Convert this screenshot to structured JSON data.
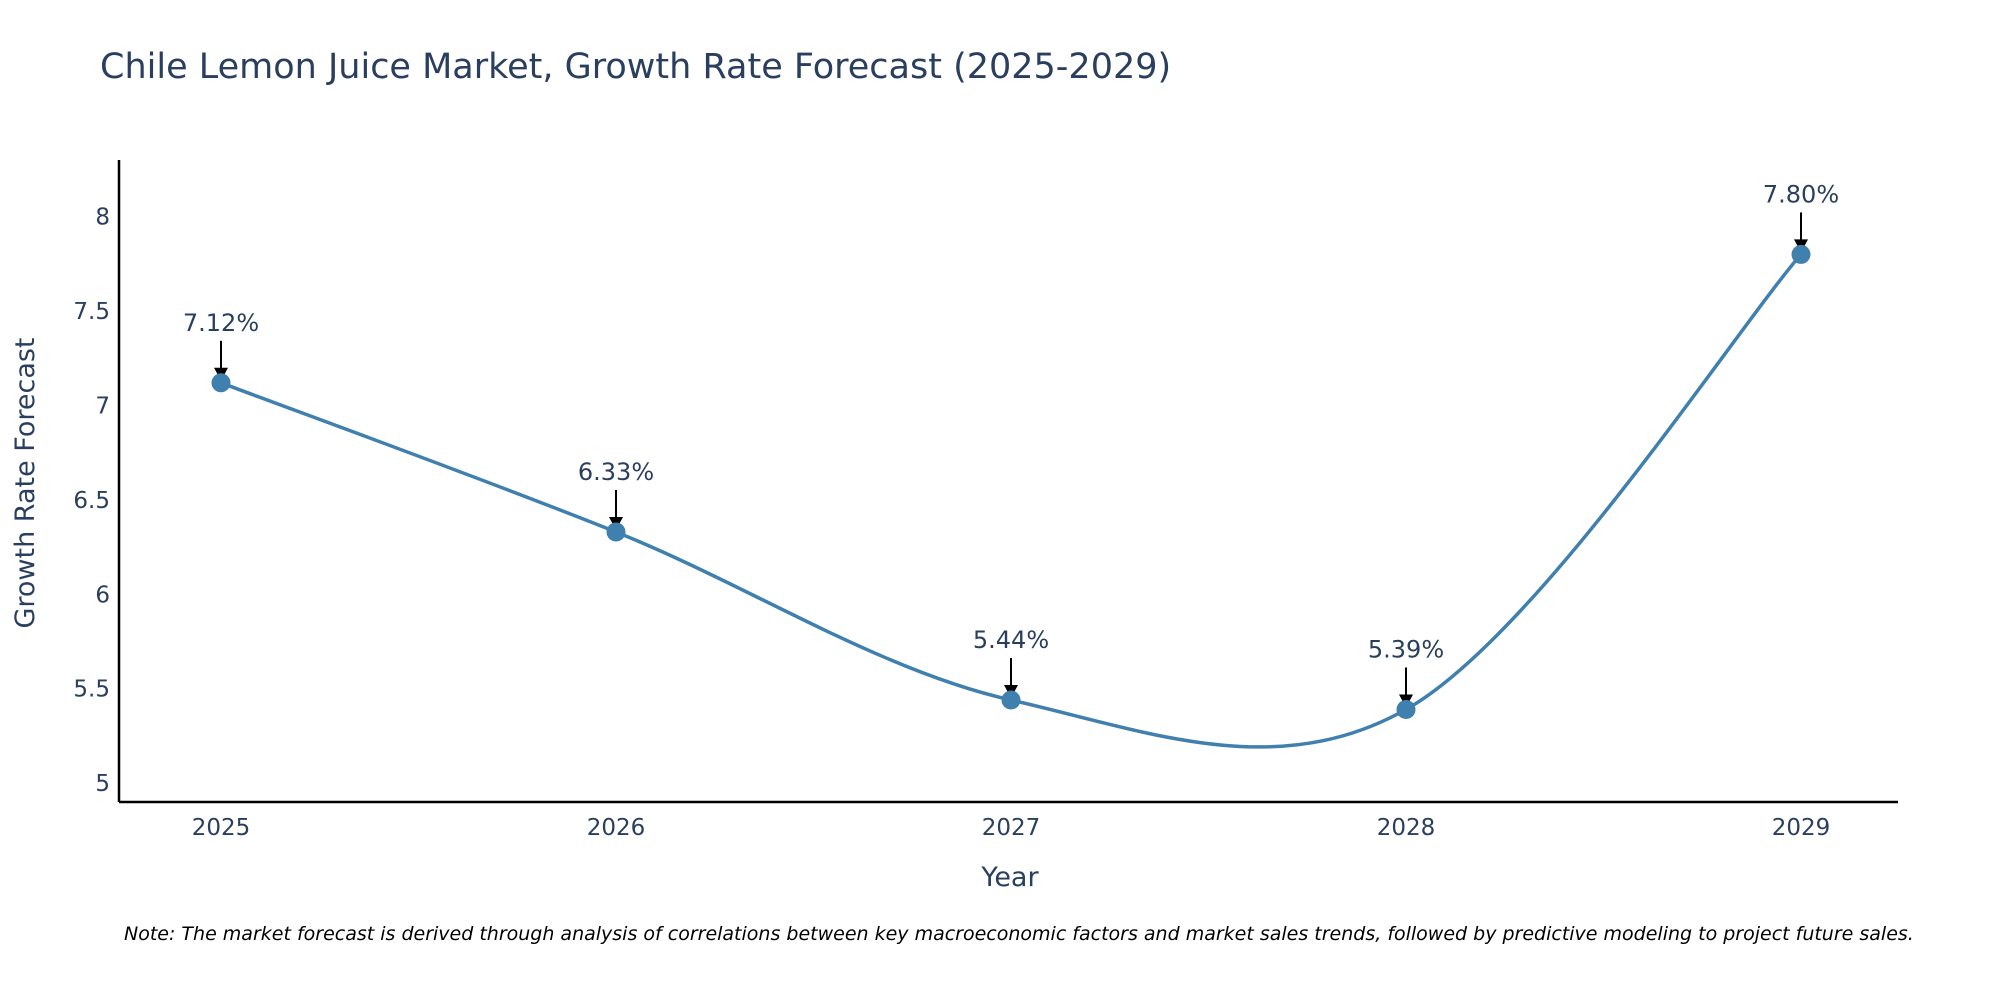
{
  "chart_data": {
    "type": "line",
    "title": "Chile Lemon Juice Market, Growth Rate Forecast (2025-2029)",
    "xlabel": "Year",
    "ylabel": "Growth Rate Forecast",
    "categories": [
      "2025",
      "2026",
      "2027",
      "2028",
      "2029"
    ],
    "series": [
      {
        "name": "Growth Rate Forecast",
        "values": [
          7.12,
          6.33,
          5.44,
          5.39,
          7.8
        ],
        "labels": [
          "7.12%",
          "6.33%",
          "5.44%",
          "5.39%",
          "7.80%"
        ],
        "color": "#4080af"
      }
    ],
    "ylim": [
      4.9,
      8.3
    ],
    "yticks": [
      5,
      5.5,
      6,
      6.5,
      7,
      7.5,
      8
    ],
    "ytick_labels": [
      "5",
      "5.5",
      "6",
      "6.5",
      "7",
      "7.5",
      "8"
    ],
    "grid": false,
    "note": "Note: The market forecast is derived through analysis of correlations between key macroeconomic factors and market sales trends, followed by predictive modeling to project future sales."
  }
}
